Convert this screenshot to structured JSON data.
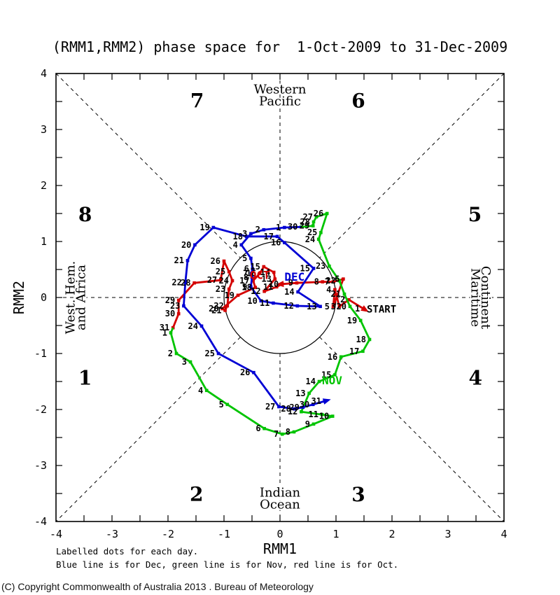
{
  "footer": {
    "copyright": "(C) Copyright Commonwealth of Australia 2013 . Bureau of Meteorology"
  },
  "chart_data": {
    "type": "line",
    "title": "(RMM1,RMM2) phase space for  1-Oct-2009 to 31-Dec-2009",
    "xlabel": "RMM1",
    "ylabel": "RMM2",
    "xlim": [
      -4,
      4
    ],
    "ylim": [
      -4,
      4
    ],
    "tick_step": 0.5,
    "xticks": [
      "-4",
      "-3",
      "-2",
      "-1",
      "0",
      "1",
      "2",
      "3",
      "4"
    ],
    "yticks": [
      "-4",
      "-3",
      "-2",
      "-1",
      "0",
      "1",
      "2",
      "3",
      "4"
    ],
    "unit_circle_radius": 1,
    "grid": "dashed center lines and corner diagonals dividing 8 MJO phases, interrupted by unit circle",
    "notes": [
      "Labelled dots for each day.",
      "Blue line is for Dec, green line is for Nov, red line is for Oct."
    ],
    "colors": {
      "oct": "#d40000",
      "nov": "#00c400",
      "dec": "#0000d4",
      "axis": "#000000"
    },
    "phase_numbers": [
      {
        "label": "1",
        "x": -3.48,
        "y": -1.44
      },
      {
        "label": "2",
        "x": -1.49,
        "y": -3.51
      },
      {
        "label": "3",
        "x": 1.4,
        "y": -3.52
      },
      {
        "label": "4",
        "x": 3.49,
        "y": -1.44
      },
      {
        "label": "5",
        "x": 3.48,
        "y": 1.48
      },
      {
        "label": "6",
        "x": 1.4,
        "y": 3.51
      },
      {
        "label": "7",
        "x": -1.48,
        "y": 3.51
      },
      {
        "label": "8",
        "x": -3.48,
        "y": 1.48
      }
    ],
    "region_labels": [
      {
        "text": "Western",
        "x": 0,
        "y": 3.71,
        "rot": 0
      },
      {
        "text": "Pacific",
        "x": 0,
        "y": 3.5,
        "rot": 0
      },
      {
        "text": "Indian",
        "x": 0,
        "y": -3.49,
        "rot": 0
      },
      {
        "text": "Ocean",
        "x": 0,
        "y": -3.7,
        "rot": 0
      },
      {
        "text": "West. Hem.",
        "x": -3.74,
        "y": 0,
        "rot": -90
      },
      {
        "text": "and Africa",
        "x": -3.55,
        "y": 0,
        "rot": -90
      },
      {
        "text": "Maritime",
        "x": 3.49,
        "y": 0,
        "rot": 90
      },
      {
        "text": "Continent",
        "x": 3.67,
        "y": 0,
        "rot": 90
      }
    ],
    "annotations": [
      {
        "text": "START",
        "x": 1.55,
        "y": -0.27,
        "color": "#000000",
        "size": 14
      },
      {
        "text": "OCT",
        "x": -0.54,
        "y": 0.33,
        "color": "#d40000",
        "size": 16
      },
      {
        "text": "DEC",
        "x": 0.08,
        "y": 0.3,
        "color": "#0000d4",
        "size": 16
      },
      {
        "text": "NOV",
        "x": 0.75,
        "y": -1.55,
        "color": "#00c400",
        "size": 16
      }
    ],
    "series": [
      {
        "name": "Oct",
        "color_key": "oct",
        "points": [
          {
            "d": 1,
            "x": 1.49,
            "y": -0.2,
            "arrow": true
          },
          {
            "d": 2,
            "x": 1.23,
            "y": -0.04
          },
          {
            "d": 3,
            "x": 1.06,
            "y": -0.16
          },
          {
            "d": 4,
            "x": 0.98,
            "y": 0.14
          },
          {
            "d": 5,
            "x": 0.95,
            "y": -0.16
          },
          {
            "d": 6,
            "x": 1.13,
            "y": 0.33
          },
          {
            "d": 7,
            "x": 0.95,
            "y": 0.28
          },
          {
            "d": 8,
            "x": 0.76,
            "y": 0.28
          },
          {
            "d": 9,
            "x": 0.3,
            "y": 0.26
          },
          {
            "d": 10,
            "x": 0.04,
            "y": 0.24,
            "arrow": true
          },
          {
            "d": 11,
            "x": -0.06,
            "y": 0.19
          },
          {
            "d": 12,
            "x": -0.28,
            "y": 0.11
          },
          {
            "d": 13,
            "x": -0.09,
            "y": 0.33
          },
          {
            "d": 14,
            "x": -0.11,
            "y": 0.45
          },
          {
            "d": 15,
            "x": -0.29,
            "y": 0.55
          },
          {
            "d": 16,
            "x": -0.36,
            "y": 0.43
          },
          {
            "d": 17,
            "x": -0.48,
            "y": 0.3
          },
          {
            "d": 18,
            "x": -0.44,
            "y": 0.18
          },
          {
            "d": 19,
            "x": -0.75,
            "y": 0.04
          },
          {
            "d": 20,
            "x": -1.03,
            "y": -0.2
          },
          {
            "d": 21,
            "x": -0.98,
            "y": -0.23
          },
          {
            "d": 22,
            "x": -0.94,
            "y": -0.15
          },
          {
            "d": 23,
            "x": -0.91,
            "y": 0.15
          },
          {
            "d": 24,
            "x": -0.85,
            "y": 0.3
          },
          {
            "d": 25,
            "x": -0.91,
            "y": 0.46
          },
          {
            "d": 26,
            "x": -1.0,
            "y": 0.65
          },
          {
            "d": 27,
            "x": -1.06,
            "y": 0.31
          },
          {
            "d": 28,
            "x": -1.53,
            "y": 0.26
          },
          {
            "d": 29,
            "x": -1.81,
            "y": -0.05
          },
          {
            "d": 30,
            "x": -1.81,
            "y": -0.29
          },
          {
            "d": 31,
            "x": -1.91,
            "y": -0.54
          }
        ]
      },
      {
        "name": "Nov",
        "color_key": "nov",
        "lead_in": {
          "x": -1.91,
          "y": -0.54
        },
        "points": [
          {
            "d": 1,
            "x": -1.95,
            "y": -0.63
          },
          {
            "d": 2,
            "x": -1.85,
            "y": -1.0
          },
          {
            "d": 3,
            "x": -1.6,
            "y": -1.15
          },
          {
            "d": 4,
            "x": -1.31,
            "y": -1.66
          },
          {
            "d": 5,
            "x": -0.94,
            "y": -1.91
          },
          {
            "d": 6,
            "x": -0.28,
            "y": -2.34
          },
          {
            "d": 7,
            "x": 0.04,
            "y": -2.44
          },
          {
            "d": 8,
            "x": 0.25,
            "y": -2.4
          },
          {
            "d": 9,
            "x": 0.6,
            "y": -2.26
          },
          {
            "d": 10,
            "x": 0.94,
            "y": -2.12
          },
          {
            "d": 11,
            "x": 0.75,
            "y": -2.09
          },
          {
            "d": 12,
            "x": 0.38,
            "y": -2.04
          },
          {
            "d": 13,
            "x": 0.52,
            "y": -1.71
          },
          {
            "d": 14,
            "x": 0.7,
            "y": -1.5
          },
          {
            "d": 15,
            "x": 0.98,
            "y": -1.38
          },
          {
            "d": 16,
            "x": 1.09,
            "y": -1.06
          },
          {
            "d": 17,
            "x": 1.48,
            "y": -0.96
          },
          {
            "d": 18,
            "x": 1.6,
            "y": -0.75
          },
          {
            "d": 19,
            "x": 1.44,
            "y": -0.41
          },
          {
            "d": 20,
            "x": 1.25,
            "y": -0.16
          },
          {
            "d": 21,
            "x": 1.15,
            "y": 0.06
          },
          {
            "d": 22,
            "x": 1.06,
            "y": 0.3
          },
          {
            "d": 23,
            "x": 0.88,
            "y": 0.56
          },
          {
            "d": 24,
            "x": 0.69,
            "y": 1.04
          },
          {
            "d": 25,
            "x": 0.73,
            "y": 1.16
          },
          {
            "d": 26,
            "x": 0.84,
            "y": 1.5
          },
          {
            "d": 27,
            "x": 0.65,
            "y": 1.44
          },
          {
            "d": 28,
            "x": 0.6,
            "y": 1.35
          },
          {
            "d": 29,
            "x": 0.59,
            "y": 1.28
          },
          {
            "d": 30,
            "x": 0.38,
            "y": 1.26
          }
        ]
      },
      {
        "name": "Dec",
        "color_key": "dec",
        "lead_in": {
          "x": 0.38,
          "y": 1.26
        },
        "points": [
          {
            "d": 1,
            "x": 0.08,
            "y": 1.25
          },
          {
            "d": 2,
            "x": -0.29,
            "y": 1.21
          },
          {
            "d": 3,
            "x": -0.52,
            "y": 1.14
          },
          {
            "d": 4,
            "x": -0.69,
            "y": 0.94
          },
          {
            "d": 5,
            "x": -0.52,
            "y": 0.7
          },
          {
            "d": 6,
            "x": -0.49,
            "y": 0.51
          },
          {
            "d": 7,
            "x": -0.51,
            "y": 0.43
          },
          {
            "d": 8,
            "x": -0.5,
            "y": 0.36
          },
          {
            "d": 9,
            "x": -0.52,
            "y": 0.19
          },
          {
            "d": 10,
            "x": -0.34,
            "y": -0.06
          },
          {
            "d": 11,
            "x": -0.12,
            "y": -0.1
          },
          {
            "d": 12,
            "x": 0.31,
            "y": -0.15
          },
          {
            "d": 13,
            "x": 0.72,
            "y": -0.16
          },
          {
            "d": 14,
            "x": 0.32,
            "y": 0.1
          },
          {
            "d": 15,
            "x": 0.6,
            "y": 0.52
          },
          {
            "d": 16,
            "x": 0.08,
            "y": 0.98
          },
          {
            "d": 17,
            "x": -0.05,
            "y": 1.09
          },
          {
            "d": 18,
            "x": -0.6,
            "y": 1.09
          },
          {
            "d": 19,
            "x": -1.19,
            "y": 1.25
          },
          {
            "d": 20,
            "x": -1.52,
            "y": 0.94
          },
          {
            "d": 21,
            "x": -1.65,
            "y": 0.66
          },
          {
            "d": 22,
            "x": -1.69,
            "y": 0.27
          },
          {
            "d": 23,
            "x": -1.72,
            "y": -0.15
          },
          {
            "d": 24,
            "x": -1.4,
            "y": -0.51
          },
          {
            "d": 25,
            "x": -1.1,
            "y": -1.0
          },
          {
            "d": 26,
            "x": -0.47,
            "y": -1.34
          },
          {
            "d": 27,
            "x": -0.02,
            "y": -1.95
          },
          {
            "d": 28,
            "x": 0.26,
            "y": -1.99
          },
          {
            "d": 29,
            "x": 0.41,
            "y": -1.96
          },
          {
            "d": 30,
            "x": 0.59,
            "y": -1.91
          },
          {
            "d": 31,
            "x": 0.8,
            "y": -1.85,
            "arrow": true
          }
        ]
      }
    ]
  }
}
